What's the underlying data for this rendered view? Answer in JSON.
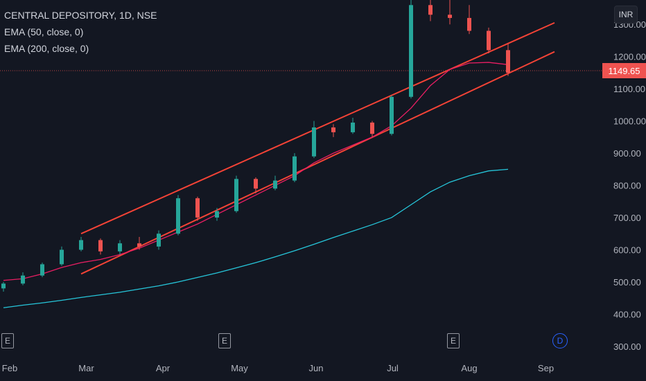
{
  "legend": {
    "symbol": "CENTRAL DEPOSITORY, 1D, NSE",
    "ema50": "EMA (50, close, 0)",
    "ema200": "EMA (200, close, 0)"
  },
  "currency": "INR",
  "last_price_label": "1149.65",
  "events": [
    {
      "type": "earnings",
      "label": "E"
    },
    {
      "type": "earnings",
      "label": "E"
    },
    {
      "type": "earnings",
      "label": "E"
    },
    {
      "type": "dividend",
      "label": "D"
    }
  ],
  "colors": {
    "background": "#131722",
    "up": "#26a69a",
    "down": "#ef5350",
    "ema50": "#e91e63",
    "ema200": "#26c6da",
    "channel": "#f44336",
    "axis_text": "#b2b5be"
  },
  "chart_data": {
    "type": "candlestick",
    "title": "CENTRAL DEPOSITORY, 1D, NSE",
    "x_tick_labels": [
      "Feb",
      "Mar",
      "Apr",
      "May",
      "Jun",
      "Jul",
      "Aug",
      "Sep"
    ],
    "y_tick_labels": [
      "300.00",
      "400.00",
      "500.00",
      "600.00",
      "700.00",
      "800.00",
      "900.00",
      "1000.00",
      "1100.00",
      "1200.00",
      "1300.00"
    ],
    "ylim": [
      280,
      1340
    ],
    "last_price": 1149.65,
    "grid": false,
    "candles_weekly_approx": [
      {
        "t": "Feb-1",
        "o": 480,
        "h": 500,
        "l": 470,
        "c": 495
      },
      {
        "t": "Feb-2",
        "o": 495,
        "h": 530,
        "l": 490,
        "c": 520
      },
      {
        "t": "Feb-3",
        "o": 520,
        "h": 560,
        "l": 515,
        "c": 555
      },
      {
        "t": "Feb-4",
        "o": 555,
        "h": 610,
        "l": 550,
        "c": 600
      },
      {
        "t": "Mar-1",
        "o": 600,
        "h": 640,
        "l": 595,
        "c": 630
      },
      {
        "t": "Mar-2",
        "o": 630,
        "h": 635,
        "l": 585,
        "c": 595
      },
      {
        "t": "Mar-3",
        "o": 595,
        "h": 630,
        "l": 585,
        "c": 620
      },
      {
        "t": "Mar-4",
        "o": 620,
        "h": 640,
        "l": 600,
        "c": 610
      },
      {
        "t": "Apr-1",
        "o": 610,
        "h": 660,
        "l": 600,
        "c": 650
      },
      {
        "t": "Apr-2",
        "o": 650,
        "h": 770,
        "l": 645,
        "c": 760
      },
      {
        "t": "Apr-3",
        "o": 760,
        "h": 765,
        "l": 690,
        "c": 700
      },
      {
        "t": "Apr-4",
        "o": 700,
        "h": 730,
        "l": 690,
        "c": 720
      },
      {
        "t": "May-1",
        "o": 720,
        "h": 830,
        "l": 715,
        "c": 820
      },
      {
        "t": "May-2",
        "o": 820,
        "h": 825,
        "l": 775,
        "c": 790
      },
      {
        "t": "May-3",
        "o": 790,
        "h": 830,
        "l": 785,
        "c": 815
      },
      {
        "t": "May-4",
        "o": 815,
        "h": 900,
        "l": 810,
        "c": 890
      },
      {
        "t": "Jun-1",
        "o": 890,
        "h": 1000,
        "l": 885,
        "c": 980
      },
      {
        "t": "Jun-2",
        "o": 980,
        "h": 990,
        "l": 950,
        "c": 965
      },
      {
        "t": "Jun-3",
        "o": 965,
        "h": 1010,
        "l": 960,
        "c": 995
      },
      {
        "t": "Jun-4",
        "o": 995,
        "h": 1000,
        "l": 950,
        "c": 960
      },
      {
        "t": "Jul-1",
        "o": 960,
        "h": 1080,
        "l": 955,
        "c": 1075
      },
      {
        "t": "Jul-2",
        "o": 1075,
        "h": 1380,
        "l": 1070,
        "c": 1360
      },
      {
        "t": "Jul-3",
        "o": 1360,
        "h": 1400,
        "l": 1310,
        "c": 1330
      },
      {
        "t": "Jul-4",
        "o": 1330,
        "h": 1380,
        "l": 1300,
        "c": 1320
      },
      {
        "t": "Aug-1",
        "o": 1320,
        "h": 1360,
        "l": 1270,
        "c": 1280
      },
      {
        "t": "Aug-2",
        "o": 1280,
        "h": 1290,
        "l": 1210,
        "c": 1220
      },
      {
        "t": "Aug-3",
        "o": 1220,
        "h": 1240,
        "l": 1140,
        "c": 1149.65
      }
    ],
    "series": [
      {
        "name": "EMA (50, close, 0)",
        "values": [
          505,
          510,
          525,
          545,
          560,
          570,
          585,
          605,
          630,
          655,
          680,
          710,
          740,
          770,
          800,
          830,
          870,
          900,
          925,
          950,
          985,
          1040,
          1110,
          1160,
          1180,
          1182,
          1175
        ]
      },
      {
        "name": "EMA (200, close, 0)",
        "values": [
          420,
          428,
          435,
          443,
          452,
          460,
          468,
          478,
          488,
          500,
          514,
          528,
          544,
          560,
          578,
          597,
          617,
          638,
          658,
          678,
          700,
          740,
          780,
          810,
          830,
          845,
          850
        ]
      }
    ],
    "channel_lines": [
      {
        "from": {
          "t": "Mar-1",
          "v": 650
        },
        "to": {
          "t": "Sep-1",
          "v": 1305
        }
      },
      {
        "from": {
          "t": "Mar-1",
          "v": 525
        },
        "to": {
          "t": "Sep-1",
          "v": 1215
        }
      }
    ]
  }
}
